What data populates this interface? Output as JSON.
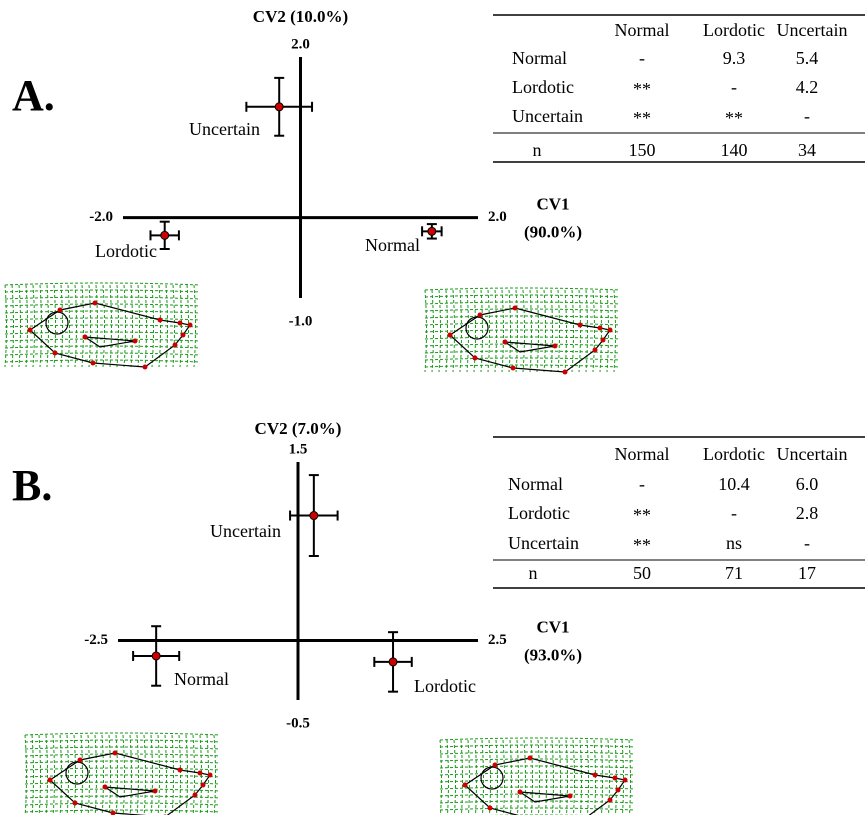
{
  "chart_data": [
    {
      "type": "scatter",
      "panel_label": "A.",
      "y_label": "CV2 (10.0%)",
      "x_label": [
        "CV1",
        "(90.0%)"
      ],
      "xlim": [
        -2,
        2
      ],
      "ylim": [
        -1,
        2
      ],
      "xticks": [
        {
          "value": -2,
          "label": "-2.0"
        },
        {
          "value": 2,
          "label": "2.0"
        }
      ],
      "yticks": [
        {
          "value": -1,
          "label": "-1.0"
        },
        {
          "value": 2,
          "label": "2.0"
        }
      ],
      "series": [
        {
          "name": "Uncertain",
          "color": "#cc0000",
          "x": [
            -0.24
          ],
          "values": [
            1.38
          ],
          "xerr": [
            0.37
          ],
          "yerr": [
            0.36
          ]
        },
        {
          "name": "Normal",
          "color": "#cc0000",
          "x": [
            1.48
          ],
          "values": [
            -0.17
          ],
          "xerr": [
            0.11
          ],
          "yerr": [
            0.09
          ]
        },
        {
          "name": "Lordotic",
          "color": "#cc0000",
          "x": [
            -1.53
          ],
          "values": [
            -0.22
          ],
          "xerr": [
            0.16
          ],
          "yerr": [
            0.17
          ]
        }
      ],
      "table": {
        "columns": [
          "Normal",
          "Lordotic",
          "Uncertain"
        ],
        "rows": [
          {
            "label": "Normal",
            "cells": [
              "-",
              "9.3",
              "5.4"
            ]
          },
          {
            "label": "Lordotic",
            "cells": [
              "**",
              "-",
              "4.2"
            ]
          },
          {
            "label": "Uncertain",
            "cells": [
              "**",
              "**",
              "-"
            ]
          },
          {
            "label": "n",
            "cells": [
              "150",
              "140",
              "34"
            ]
          }
        ]
      }
    },
    {
      "type": "scatter",
      "panel_label": "B.",
      "y_label": "CV2 (7.0%)",
      "x_label": [
        "CV1",
        "(93.0%)"
      ],
      "xlim": [
        -2.5,
        2.5
      ],
      "ylim": [
        -0.5,
        1.5
      ],
      "xticks": [
        -2.5,
        2.5
      ],
      "yticks": [
        -0.5,
        1.5
      ],
      "series": [
        {
          "name": "Uncertain",
          "color": "#cc0000",
          "x": [
            0.22
          ],
          "values": [
            1.05
          ],
          "xerr": [
            0.33
          ],
          "yerr": [
            0.34
          ]
        },
        {
          "name": "Normal",
          "color": "#cc0000",
          "x": [
            -1.97
          ],
          "values": [
            -0.13
          ],
          "xerr": [
            0.32
          ],
          "yerr": [
            0.25
          ]
        },
        {
          "name": "Lordotic",
          "color": "#cc0000",
          "x": [
            1.32
          ],
          "values": [
            -0.18
          ],
          "xerr": [
            0.26
          ],
          "yerr": [
            0.25
          ]
        }
      ],
      "table": {
        "columns": [
          "Normal",
          "Lordotic",
          "Uncertain"
        ],
        "rows": [
          {
            "label": "Normal",
            "cells": [
              "-",
              "10.4",
              "6.0"
            ]
          },
          {
            "label": "Lordotic",
            "cells": [
              "**",
              "-",
              "2.8"
            ]
          },
          {
            "label": "Uncertain",
            "cells": [
              "**",
              "ns",
              "-"
            ]
          },
          {
            "label": "n",
            "cells": [
              "50",
              "71",
              "17"
            ]
          }
        ]
      }
    }
  ]
}
